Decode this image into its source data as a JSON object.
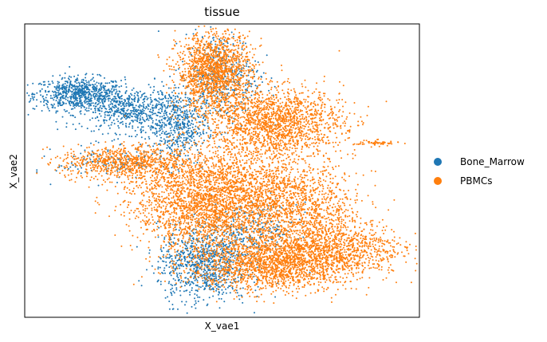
{
  "chart_data": {
    "type": "scatter",
    "title": "tissue",
    "xlabel": "X_vae1",
    "ylabel": "X_vae2",
    "axis_ticks": "none",
    "grid": false,
    "legend_position": "right",
    "series": [
      {
        "name": "Bone_Marrow",
        "color": "#1f77b4"
      },
      {
        "name": "PBMCs",
        "color": "#ff7f0e"
      }
    ],
    "clusters": [
      {
        "series": "Bone_Marrow",
        "cx": 0.12,
        "cy": 0.78,
        "sx": 0.06,
        "sy": 0.03,
        "n": 700
      },
      {
        "series": "Bone_Marrow",
        "cx": 0.26,
        "cy": 0.72,
        "sx": 0.07,
        "sy": 0.04,
        "n": 600
      },
      {
        "series": "Bone_Marrow",
        "cx": 0.38,
        "cy": 0.66,
        "sx": 0.04,
        "sy": 0.07,
        "n": 450
      },
      {
        "series": "Bone_Marrow",
        "cx": 0.5,
        "cy": 0.84,
        "sx": 0.05,
        "sy": 0.08,
        "n": 400
      },
      {
        "series": "Bone_Marrow",
        "cx": 0.45,
        "cy": 0.16,
        "sx": 0.06,
        "sy": 0.07,
        "n": 900
      },
      {
        "series": "Bone_Marrow",
        "cx": 0.58,
        "cy": 0.28,
        "sx": 0.06,
        "sy": 0.05,
        "n": 250
      },
      {
        "series": "Bone_Marrow",
        "cx": 0.2,
        "cy": 0.53,
        "sx": 0.07,
        "sy": 0.03,
        "n": 120
      },
      {
        "series": "PBMCs",
        "cx": 0.48,
        "cy": 0.86,
        "sx": 0.05,
        "sy": 0.07,
        "n": 1500
      },
      {
        "series": "PBMCs",
        "cx": 0.64,
        "cy": 0.68,
        "sx": 0.09,
        "sy": 0.06,
        "n": 1600
      },
      {
        "series": "PBMCs",
        "cx": 0.23,
        "cy": 0.53,
        "sx": 0.08,
        "sy": 0.03,
        "n": 700
      },
      {
        "series": "PBMCs",
        "cx": 0.42,
        "cy": 0.45,
        "sx": 0.09,
        "sy": 0.07,
        "n": 1000
      },
      {
        "series": "PBMCs",
        "cx": 0.6,
        "cy": 0.45,
        "sx": 0.1,
        "sy": 0.08,
        "n": 1000
      },
      {
        "series": "PBMCs",
        "cx": 0.47,
        "cy": 0.33,
        "sx": 0.1,
        "sy": 0.06,
        "n": 1200
      },
      {
        "series": "PBMCs",
        "cx": 0.63,
        "cy": 0.16,
        "sx": 0.11,
        "sy": 0.05,
        "n": 1800
      },
      {
        "series": "PBMCs",
        "cx": 0.8,
        "cy": 0.22,
        "sx": 0.09,
        "sy": 0.05,
        "n": 900
      },
      {
        "series": "PBMCs",
        "cx": 0.72,
        "cy": 0.35,
        "sx": 0.08,
        "sy": 0.07,
        "n": 700
      },
      {
        "series": "PBMCs",
        "cx": 0.91,
        "cy": 0.6,
        "sx": 0.03,
        "sy": 0.005,
        "n": 60
      }
    ]
  }
}
